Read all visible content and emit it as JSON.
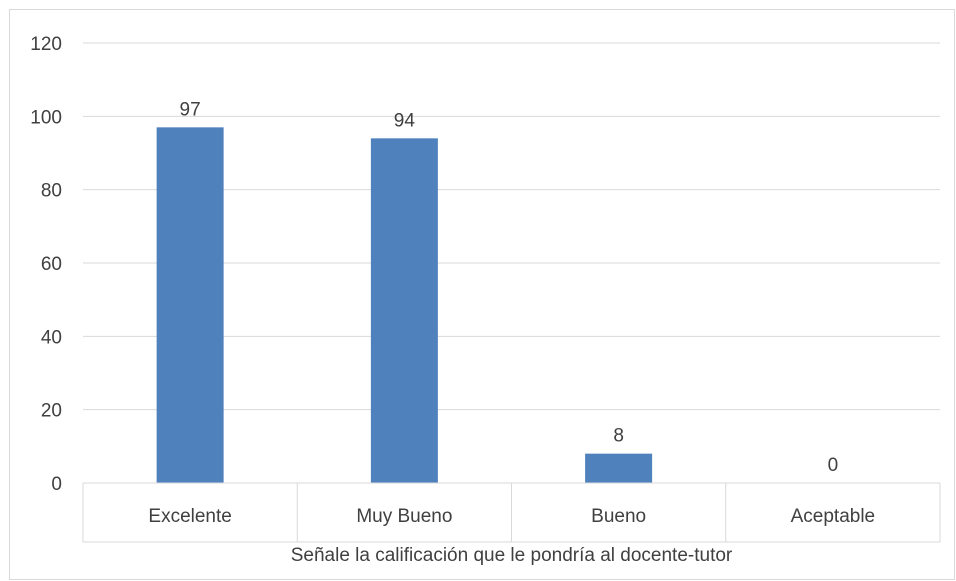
{
  "chart_data": {
    "type": "bar",
    "categories": [
      "Excelente",
      "Muy Bueno",
      "Bueno",
      "Aceptable"
    ],
    "values": [
      97,
      94,
      8,
      0
    ],
    "data_labels": [
      "97",
      "94",
      "8",
      "0"
    ],
    "title": "",
    "xlabel": "Señale la calificación que le pondría al docente-tutor",
    "ylabel": "",
    "ylim": [
      0,
      120
    ],
    "yticks": [
      0,
      20,
      40,
      60,
      80,
      100,
      120
    ],
    "grid": true,
    "legend": "none",
    "bar_color": "#4f81bd"
  }
}
